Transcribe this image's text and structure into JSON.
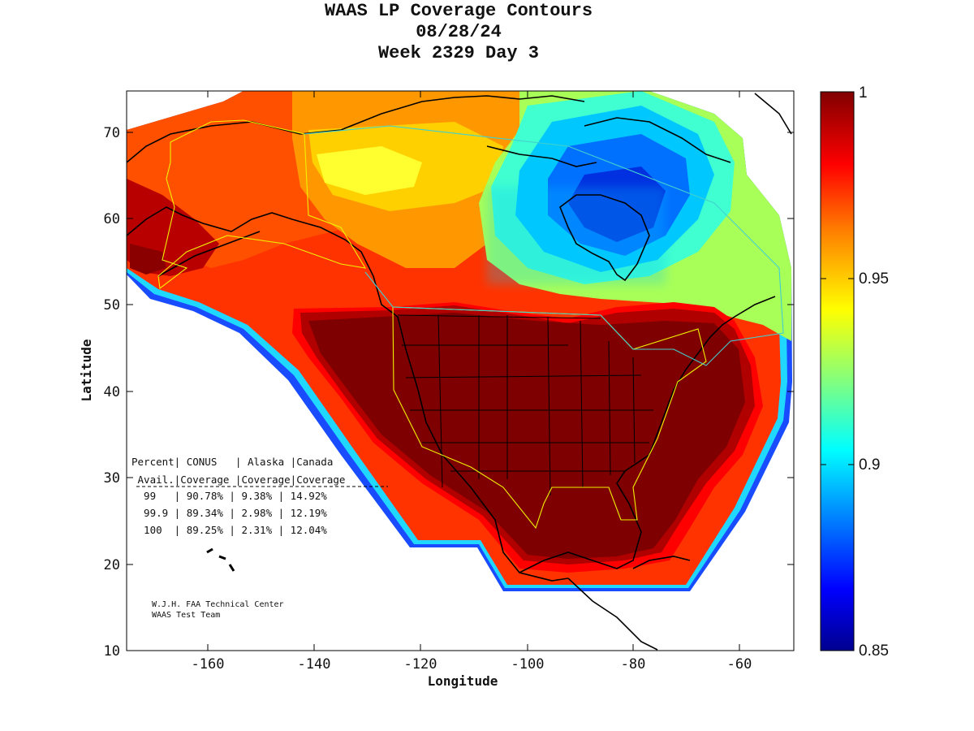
{
  "title": {
    "line1": "WAAS LP Coverage Contours",
    "line2": "08/28/24",
    "line3": "Week 2329 Day 3"
  },
  "axes": {
    "xlabel": "Longitude",
    "ylabel": "Latitude",
    "xlim": [
      -175,
      -50
    ],
    "ylim": [
      10,
      75
    ],
    "xticks": [
      "-160",
      "-140",
      "-120",
      "-100",
      "-80",
      "-60"
    ],
    "yticks": [
      "10",
      "20",
      "30",
      "40",
      "50",
      "60",
      "70"
    ]
  },
  "colorbar": {
    "min": 0.85,
    "max": 1,
    "labels": [
      "1",
      "0.95",
      "0.9",
      "0.85"
    ],
    "colormap": "jet",
    "colors": [
      "#00008f",
      "#0000ff",
      "#0080ff",
      "#00ffff",
      "#80ff80",
      "#ffff00",
      "#ff8000",
      "#ff0000",
      "#800000"
    ]
  },
  "coverage_table": {
    "header1": [
      "Percent",
      "CONUS",
      "Alaska",
      "Canada"
    ],
    "header2": [
      "Avail.",
      "Coverage",
      "Coverage",
      "Coverage"
    ],
    "header1_text": "Percent| CONUS   | Alaska |Canada",
    "header2_text": " Avail.|Coverage |Coverage|Coverage",
    "rows": [
      {
        "text": "  99   | 90.78% | 9.38% | 14.92%",
        "avail": "99",
        "conus": "90.78%",
        "alaska": "9.38%",
        "canada": "14.92%"
      },
      {
        "text": "  99.9 | 89.34% | 2.98% | 12.19%",
        "avail": "99.9",
        "conus": "89.34%",
        "alaska": "2.98%",
        "canada": "12.19%"
      },
      {
        "text": "  100  | 89.25% | 2.31% | 12.04%",
        "avail": "100",
        "conus": "89.25%",
        "alaska": "2.31%",
        "canada": "12.04%"
      }
    ]
  },
  "credits": {
    "line1": "W.J.H. FAA Technical Center",
    "line2": "WAAS Test Team"
  },
  "legend_colors": {
    "frame": "#000000",
    "coastline": "#000000",
    "service_volume": "#f0f000",
    "canada_region": "#40d0d0"
  }
}
